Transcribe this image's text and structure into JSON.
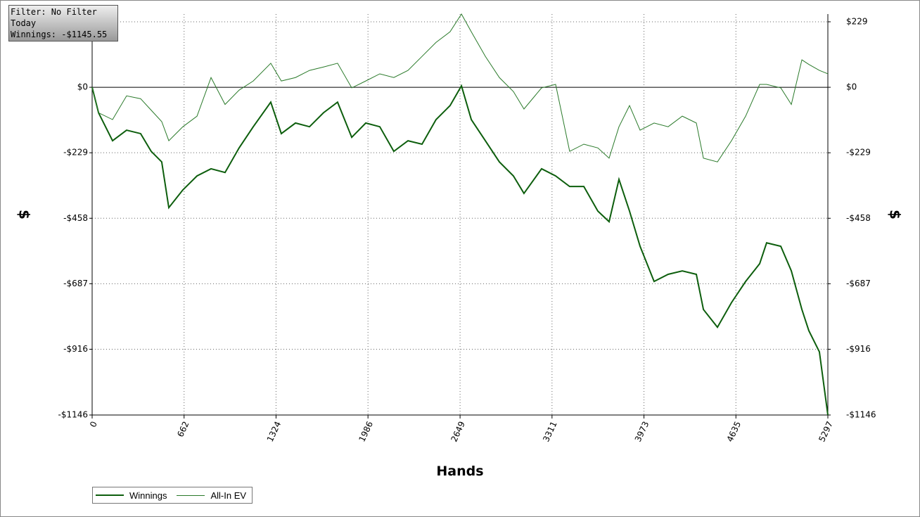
{
  "chart_data": {
    "type": "line",
    "annotations": [
      "Filter: No Filter",
      "Today",
      "Winnings: -$1145.55"
    ],
    "xlabel": "Hands",
    "ylabel": "$",
    "y2label": "$",
    "xlim": [
      0,
      5297
    ],
    "xticks": [
      0,
      662,
      1324,
      1986,
      2649,
      3311,
      3973,
      4635,
      5297
    ],
    "ylim": [
      -1146,
      256
    ],
    "yticks": [
      {
        "value": 229,
        "label": "$229"
      },
      {
        "value": 0,
        "label": "$0"
      },
      {
        "value": -229,
        "label": "-$229"
      },
      {
        "value": -458,
        "label": "-$458"
      },
      {
        "value": -687,
        "label": "-$687"
      },
      {
        "value": -916,
        "label": "-$916"
      },
      {
        "value": -1146,
        "label": "-$1146"
      }
    ],
    "grid": true,
    "x": [
      0,
      46,
      147,
      248,
      349,
      425,
      501,
      552,
      653,
      755,
      856,
      957,
      1058,
      1160,
      1286,
      1362,
      1464,
      1565,
      1666,
      1767,
      1869,
      1970,
      2071,
      2172,
      2274,
      2375,
      2476,
      2577,
      2659,
      2730,
      2831,
      2932,
      3033,
      3109,
      3236,
      3337,
      3438,
      3540,
      3641,
      3722,
      3793,
      3869,
      3945,
      4046,
      4147,
      4249,
      4350,
      4401,
      4502,
      4603,
      4705,
      4806,
      4856,
      4958,
      5034,
      5110,
      5160,
      5236,
      5297
    ],
    "series": [
      {
        "name": "Winnings",
        "color": "#0d5e0d",
        "values": [
          0,
          -89,
          -187,
          -150,
          -162,
          -224,
          -261,
          -421,
          -359,
          -310,
          -285,
          -298,
          -212,
          -138,
          -52,
          -162,
          -125,
          -138,
          -89,
          -52,
          -175,
          -125,
          -138,
          -224,
          -187,
          -199,
          -113,
          -64,
          5,
          -113,
          -187,
          -261,
          -310,
          -371,
          -285,
          -310,
          -347,
          -347,
          -433,
          -470,
          -322,
          -433,
          -556,
          -679,
          -654,
          -642,
          -654,
          -777,
          -839,
          -753,
          -679,
          -617,
          -544,
          -556,
          -642,
          -777,
          -851,
          -925,
          -1146
        ]
      },
      {
        "name": "All-In EV",
        "color": "#2a7a2a",
        "values": [
          0,
          -89,
          -113,
          -30,
          -40,
          -80,
          -120,
          -187,
          -138,
          -101,
          34,
          -60,
          -10,
          22,
          84,
          22,
          34,
          59,
          71,
          84,
          -2,
          22,
          47,
          34,
          59,
          108,
          157,
          194,
          256,
          194,
          108,
          34,
          -15,
          -76,
          -2,
          10,
          -224,
          -199,
          -212,
          -248,
          -138,
          -64,
          -150,
          -125,
          -138,
          -101,
          -125,
          -248,
          -261,
          -187,
          -101,
          10,
          10,
          -2,
          -60,
          96,
          80,
          59,
          47
        ]
      }
    ]
  }
}
